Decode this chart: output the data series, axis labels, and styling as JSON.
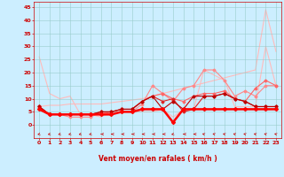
{
  "xlabel": "Vent moyen/en rafales ( km/h )",
  "background_color": "#cceeff",
  "grid_color": "#99cccc",
  "x_ticks": [
    0,
    1,
    2,
    3,
    4,
    5,
    6,
    7,
    8,
    9,
    10,
    11,
    12,
    13,
    14,
    15,
    16,
    17,
    18,
    19,
    20,
    21,
    22,
    23
  ],
  "y_ticks": [
    0,
    5,
    10,
    15,
    20,
    25,
    30,
    35,
    40,
    45
  ],
  "ylim": [
    -5,
    47
  ],
  "xlim": [
    -0.5,
    23.5
  ],
  "series": [
    {
      "x": [
        0,
        1,
        2,
        3,
        4,
        5,
        6,
        7,
        8,
        9,
        10,
        11,
        12,
        13,
        14,
        15,
        16,
        17,
        18,
        19,
        20,
        21,
        22,
        23
      ],
      "y": [
        7,
        7.5,
        7.5,
        8,
        8,
        8,
        8,
        8.5,
        9,
        9.5,
        10,
        11,
        12,
        13,
        14,
        15,
        16,
        17,
        18,
        19,
        20,
        21,
        44,
        28
      ],
      "color": "#ffbbbb",
      "lw": 0.8,
      "marker": null,
      "zorder": 1
    },
    {
      "x": [
        0,
        1,
        2,
        3,
        4,
        5,
        6,
        7,
        8,
        9,
        10,
        11,
        12,
        13,
        14,
        15,
        16,
        17,
        18,
        19,
        20,
        21,
        22,
        23
      ],
      "y": [
        26,
        12,
        10,
        11,
        4,
        4,
        3,
        5,
        5,
        5,
        5,
        5,
        6,
        3,
        6,
        6,
        21,
        19,
        17,
        7,
        7,
        7,
        30,
        15
      ],
      "color": "#ffbbbb",
      "lw": 0.8,
      "marker": null,
      "zorder": 1
    },
    {
      "x": [
        0,
        1,
        2,
        3,
        4,
        5,
        6,
        7,
        8,
        9,
        10,
        11,
        12,
        13,
        14,
        15,
        16,
        17,
        18,
        19,
        20,
        21,
        22,
        23
      ],
      "y": [
        7,
        4,
        4,
        3,
        3,
        3,
        5,
        4,
        5,
        5,
        8,
        15,
        12,
        9,
        14,
        15,
        21,
        21,
        17,
        11,
        13,
        11,
        15,
        15
      ],
      "color": "#ff8888",
      "lw": 0.8,
      "marker": "D",
      "markersize": 1.5,
      "zorder": 2
    },
    {
      "x": [
        0,
        1,
        2,
        3,
        4,
        5,
        6,
        7,
        8,
        9,
        10,
        11,
        12,
        13,
        14,
        15,
        16,
        17,
        18,
        19,
        20,
        21,
        22,
        23
      ],
      "y": [
        7,
        4,
        4,
        4,
        4,
        4,
        4,
        5,
        6,
        6,
        9,
        11,
        12,
        10,
        9,
        11,
        12,
        12,
        13,
        10,
        9,
        14,
        17,
        15
      ],
      "color": "#ff6666",
      "lw": 0.8,
      "marker": "D",
      "markersize": 1.5,
      "zorder": 3
    },
    {
      "x": [
        0,
        1,
        2,
        3,
        4,
        5,
        6,
        7,
        8,
        9,
        10,
        11,
        12,
        13,
        14,
        15,
        16,
        17,
        18,
        19,
        20,
        21,
        22,
        23
      ],
      "y": [
        7,
        4,
        4,
        4,
        4,
        4,
        5,
        5,
        6,
        6,
        9,
        11,
        9,
        10,
        5,
        6,
        11,
        11,
        12,
        10,
        9,
        7,
        7,
        7
      ],
      "color": "#dd2222",
      "lw": 0.8,
      "marker": "D",
      "markersize": 1.5,
      "zorder": 4
    },
    {
      "x": [
        0,
        1,
        2,
        3,
        4,
        5,
        6,
        7,
        8,
        9,
        10,
        11,
        12,
        13,
        14,
        15,
        16,
        17,
        18,
        19,
        20,
        21,
        22,
        23
      ],
      "y": [
        7,
        4,
        4,
        4,
        4,
        4,
        5,
        5,
        6,
        6,
        9,
        11,
        6,
        9,
        6,
        11,
        11,
        11,
        12,
        10,
        9,
        7,
        7,
        7
      ],
      "color": "#bb0000",
      "lw": 0.8,
      "marker": "D",
      "markersize": 1.5,
      "zorder": 5
    },
    {
      "x": [
        0,
        1,
        2,
        3,
        4,
        5,
        6,
        7,
        8,
        9,
        10,
        11,
        12,
        13,
        14,
        15,
        16,
        17,
        18,
        19,
        20,
        21,
        22,
        23
      ],
      "y": [
        6,
        4,
        4,
        4,
        4,
        4,
        4,
        4,
        5,
        5,
        6,
        6,
        6,
        1,
        6,
        6,
        6,
        6,
        6,
        6,
        6,
        6,
        6,
        6
      ],
      "color": "#ff0000",
      "lw": 1.8,
      "marker": "D",
      "markersize": 2.0,
      "zorder": 6
    }
  ],
  "arrow_angles": [
    225,
    225,
    225,
    225,
    225,
    225,
    270,
    270,
    270,
    270,
    270,
    270,
    270,
    225,
    270,
    270,
    315,
    315,
    315,
    315,
    315,
    315,
    315,
    315
  ]
}
